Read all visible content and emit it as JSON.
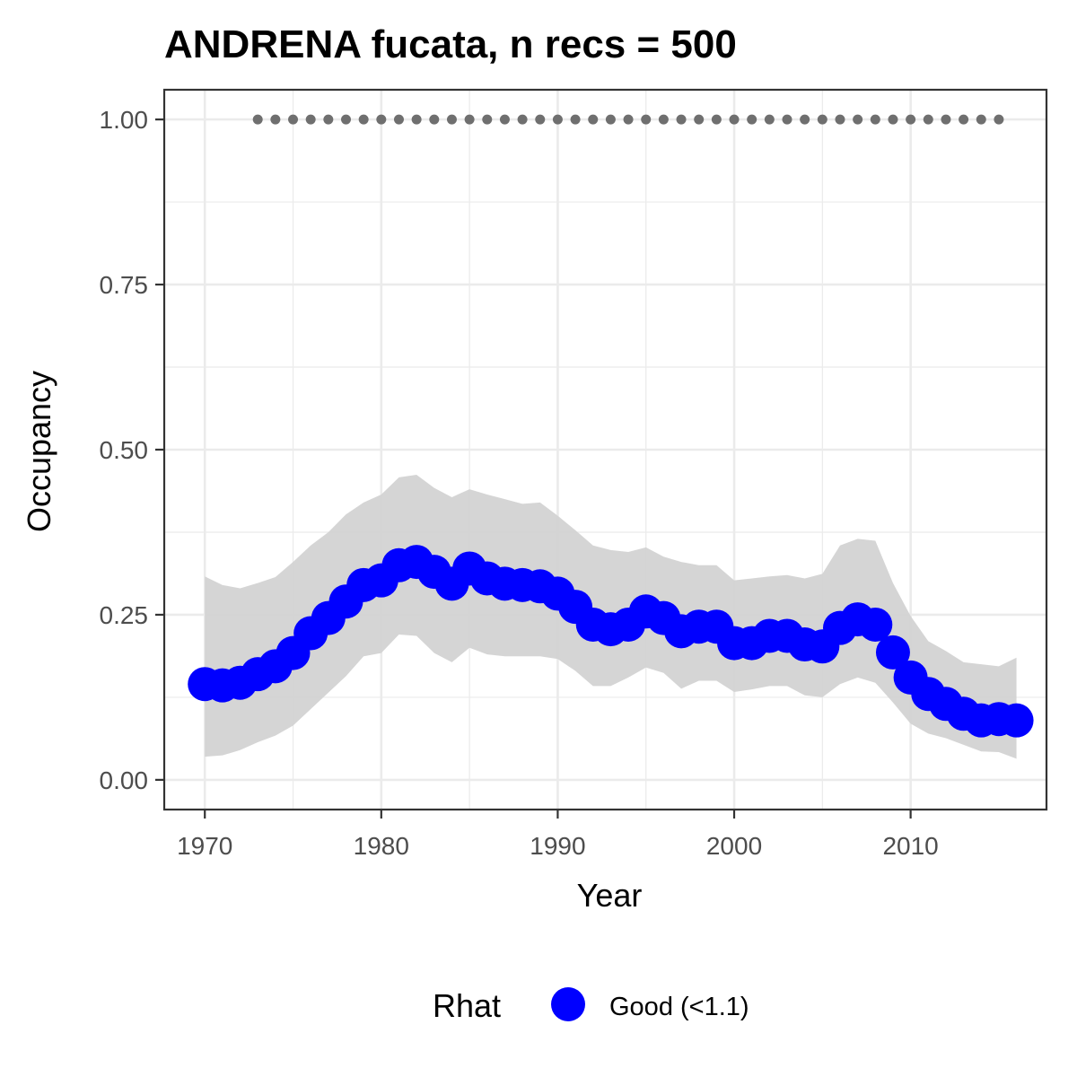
{
  "chart_data": {
    "type": "line",
    "title": "ANDRENA fucata, n recs = 500",
    "xlabel": "Year",
    "ylabel": "Occupancy",
    "xlim": [
      1967.7,
      2017.7
    ],
    "ylim": [
      -0.045,
      1.045
    ],
    "x_ticks": [
      1970,
      1980,
      1990,
      2000,
      2010
    ],
    "x_tick_labels": [
      "1970",
      "1980",
      "1990",
      "2000",
      "2010"
    ],
    "y_ticks": [
      0,
      0.25,
      0.5,
      0.75,
      1.0
    ],
    "y_tick_labels": [
      "0.00",
      "0.25",
      "0.50",
      "0.75",
      "1.00"
    ],
    "grid": true,
    "legend": {
      "title": "Rhat",
      "position": "bottom",
      "entries": [
        {
          "label": "Good (<1.1)",
          "color": "#0000ff"
        }
      ]
    },
    "colors": {
      "points": "#0000ff",
      "ribbon": "#d3d3d3",
      "rhat_dots": "#6f6f6f",
      "panel_border": "#333333",
      "grid": "#ebebeb"
    },
    "x": [
      1970,
      1971,
      1972,
      1973,
      1974,
      1975,
      1976,
      1977,
      1978,
      1979,
      1980,
      1981,
      1982,
      1983,
      1984,
      1985,
      1986,
      1987,
      1988,
      1989,
      1990,
      1991,
      1992,
      1993,
      1994,
      1995,
      1996,
      1997,
      1998,
      1999,
      2000,
      2001,
      2002,
      2003,
      2004,
      2005,
      2006,
      2007,
      2008,
      2009,
      2010,
      2011,
      2012,
      2013,
      2014,
      2015,
      2016
    ],
    "series": [
      {
        "name": "Good (<1.1)",
        "values": [
          0.145,
          0.143,
          0.147,
          0.16,
          0.172,
          0.192,
          0.222,
          0.245,
          0.27,
          0.295,
          0.302,
          0.325,
          0.33,
          0.315,
          0.297,
          0.32,
          0.305,
          0.297,
          0.295,
          0.293,
          0.282,
          0.262,
          0.235,
          0.228,
          0.235,
          0.255,
          0.245,
          0.225,
          0.232,
          0.232,
          0.207,
          0.207,
          0.218,
          0.218,
          0.205,
          0.202,
          0.23,
          0.243,
          0.235,
          0.193,
          0.155,
          0.13,
          0.115,
          0.1,
          0.09,
          0.092,
          0.09
        ],
        "lower": [
          0.035,
          0.037,
          0.045,
          0.057,
          0.067,
          0.082,
          0.107,
          0.132,
          0.157,
          0.187,
          0.192,
          0.22,
          0.218,
          0.192,
          0.178,
          0.2,
          0.19,
          0.187,
          0.187,
          0.187,
          0.183,
          0.165,
          0.142,
          0.142,
          0.155,
          0.17,
          0.162,
          0.138,
          0.15,
          0.15,
          0.133,
          0.137,
          0.142,
          0.142,
          0.128,
          0.125,
          0.145,
          0.155,
          0.147,
          0.117,
          0.085,
          0.07,
          0.063,
          0.053,
          0.043,
          0.042,
          0.032
        ],
        "upper": [
          0.308,
          0.295,
          0.29,
          0.298,
          0.307,
          0.33,
          0.355,
          0.375,
          0.402,
          0.42,
          0.432,
          0.458,
          0.462,
          0.442,
          0.428,
          0.44,
          0.432,
          0.425,
          0.418,
          0.42,
          0.4,
          0.378,
          0.355,
          0.348,
          0.345,
          0.352,
          0.338,
          0.33,
          0.325,
          0.325,
          0.302,
          0.305,
          0.308,
          0.31,
          0.305,
          0.312,
          0.355,
          0.365,
          0.362,
          0.298,
          0.248,
          0.21,
          0.195,
          0.178,
          0.175,
          0.172,
          0.185
        ]
      }
    ],
    "rhat_check": {
      "x_start": 1973,
      "x_end": 2015,
      "y": 1.0
    }
  }
}
